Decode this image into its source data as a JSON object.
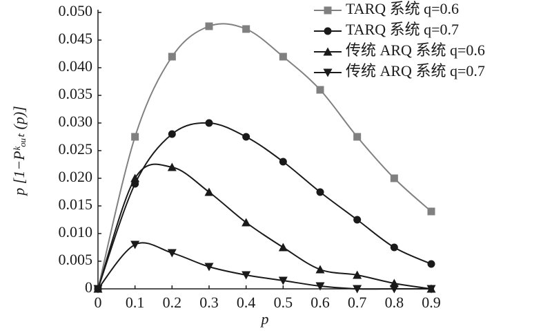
{
  "chart_data": {
    "type": "line",
    "x_label": "p",
    "y_label": "p [1−Pᵏₒᵤₜ (p)]",
    "x": [
      0,
      0.1,
      0.2,
      0.3,
      0.4,
      0.5,
      0.6,
      0.7,
      0.8,
      0.9
    ],
    "series": [
      {
        "name": "TARQ 系统 q=0.6",
        "color": "#808080",
        "marker": "square",
        "values": [
          0,
          0.0275,
          0.042,
          0.0475,
          0.047,
          0.042,
          0.036,
          0.0275,
          0.02,
          0.014
        ]
      },
      {
        "name": "TARQ 系统 q=0.7",
        "color": "#1a1a1a",
        "marker": "circle",
        "values": [
          0,
          0.019,
          0.028,
          0.03,
          0.0275,
          0.023,
          0.0175,
          0.0125,
          0.0075,
          0.0045
        ]
      },
      {
        "name": "传统 ARQ 系统 q=0.6",
        "color": "#1a1a1a",
        "marker": "triangle-up",
        "values": [
          0,
          0.02,
          0.022,
          0.0175,
          0.012,
          0.0075,
          0.0035,
          0.0025,
          0.001,
          0
        ]
      },
      {
        "name": "传统 ARQ 系统 q=0.7",
        "color": "#1a1a1a",
        "marker": "triangle-down",
        "values": [
          0,
          0.008,
          0.0065,
          0.004,
          0.0025,
          0.0015,
          0.0005,
          0,
          0,
          0
        ]
      }
    ],
    "xlim": [
      0,
      0.9
    ],
    "ylim": [
      0,
      0.05
    ],
    "xticks": [
      0,
      0.1,
      0.2,
      0.3,
      0.4,
      0.5,
      0.6,
      0.7,
      0.8,
      0.9
    ],
    "yticks": [
      0,
      0.005,
      {
        "value": 0.01,
        "label": "0.010"
      },
      0.015,
      {
        "value": 0.02,
        "label": "0.020"
      },
      0.025,
      {
        "value": 0.03,
        "label": "0.030"
      },
      0.035,
      {
        "value": 0.04,
        "label": "0.040"
      },
      0.045,
      {
        "value": 0.05,
        "label": "0.050"
      }
    ],
    "legend": "upper right",
    "smooth": true
  }
}
